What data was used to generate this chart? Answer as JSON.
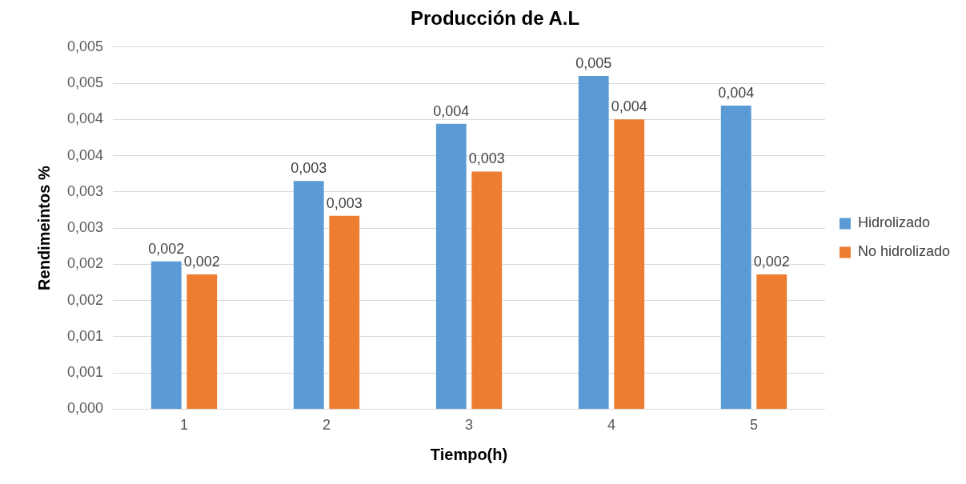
{
  "chart_data": {
    "type": "bar",
    "title": "Producción de A.L",
    "xlabel": "Tiempo(h)",
    "ylabel": "Rendimeintos %",
    "categories": [
      "1",
      "2",
      "3",
      "4",
      "5"
    ],
    "series": [
      {
        "name": "Hidrolizado",
        "color": "#5b9bd5",
        "values": [
          0.00204,
          0.00315,
          0.00394,
          0.0046,
          0.00419
        ],
        "value_labels": [
          "0,002",
          "0,003",
          "0,004",
          "0,005",
          "0,004"
        ]
      },
      {
        "name": "No hidrolizado",
        "color": "#ed7d31",
        "values": [
          0.00186,
          0.00267,
          0.00328,
          0.004,
          0.00186
        ],
        "value_labels": [
          "0,002",
          "0,003",
          "0,003",
          "0,004",
          "0,002"
        ]
      }
    ],
    "ylim": [
      0,
      0.005
    ],
    "yticks": [
      {
        "value": 0,
        "label": "0,000"
      },
      {
        "value": 0.0005,
        "label": "0,001"
      },
      {
        "value": 0.001,
        "label": "0,001"
      },
      {
        "value": 0.0015,
        "label": "0,002"
      },
      {
        "value": 0.002,
        "label": "0,002"
      },
      {
        "value": 0.0025,
        "label": "0,003"
      },
      {
        "value": 0.003,
        "label": "0,003"
      },
      {
        "value": 0.0035,
        "label": "0,004"
      },
      {
        "value": 0.004,
        "label": "0,004"
      },
      {
        "value": 0.0045,
        "label": "0,005"
      },
      {
        "value": 0.005,
        "label": "0,005"
      }
    ],
    "grid": "y",
    "legend": "right"
  }
}
